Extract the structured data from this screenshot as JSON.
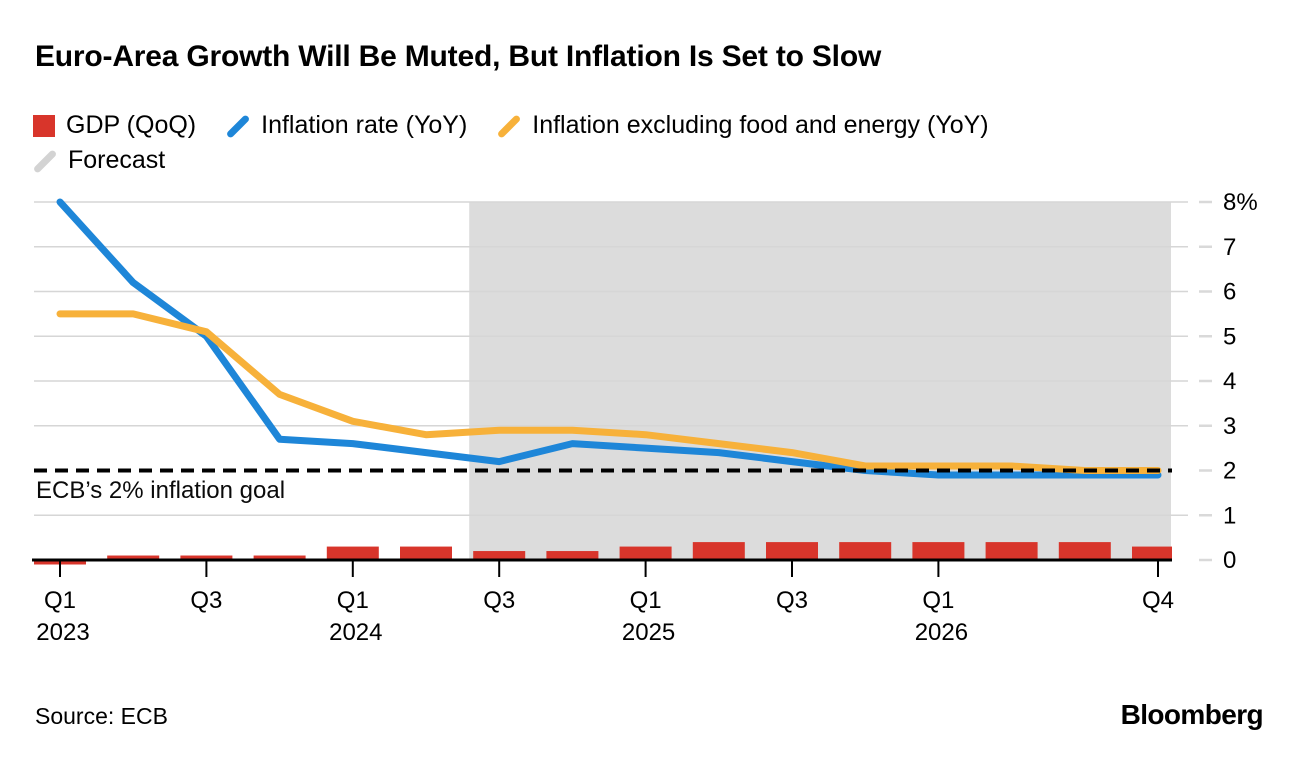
{
  "title": "Euro-Area Growth Will Be Muted, But Inflation Is Set to Slow",
  "legend": [
    {
      "label": "GDP (QoQ)",
      "swatch": "square",
      "color": "#d8352b"
    },
    {
      "label": "Inflation rate (YoY)",
      "swatch": "slash",
      "color": "#1e86d8"
    },
    {
      "label": "Inflation excluding food and energy (YoY)",
      "swatch": "slash",
      "color": "#f7b13a"
    },
    {
      "label": "Forecast",
      "swatch": "slash",
      "color": "#d3d3d3"
    }
  ],
  "annotation": "ECB’s 2% inflation goal",
  "source": "Source: ECB",
  "brand": "Bloomberg",
  "colors": {
    "gdp_bar": "#d8352b",
    "inflation_line": "#1e86d8",
    "core_inflation_line": "#f7b13a",
    "forecast_region": "#dcdcdc",
    "gridline": "#d6d6d6",
    "axis_tick_dash": "#d9d9d9",
    "reference_line": "#000000",
    "axis_line": "#000000",
    "text": "#000000"
  },
  "chart_data": {
    "type": "bar+line combo",
    "title": "Euro-Area Growth Will Be Muted, But Inflation Is Set to Slow",
    "categories": [
      "Q1 2023",
      "Q2 2023",
      "Q3 2023",
      "Q4 2023",
      "Q1 2024",
      "Q2 2024",
      "Q3 2024",
      "Q4 2024",
      "Q1 2025",
      "Q2 2025",
      "Q3 2025",
      "Q4 2025",
      "Q1 2026",
      "Q2 2026",
      "Q3 2026",
      "Q4 2026"
    ],
    "series": [
      {
        "name": "GDP (QoQ)",
        "type": "bar",
        "color": "#d8352b",
        "values": [
          0.0,
          0.1,
          0.1,
          0.1,
          0.3,
          0.3,
          0.2,
          0.2,
          0.3,
          0.4,
          0.4,
          0.4,
          0.4,
          0.4,
          0.4,
          0.3
        ]
      },
      {
        "name": "Inflation rate (YoY)",
        "type": "line",
        "color": "#1e86d8",
        "values": [
          8.0,
          6.2,
          5.0,
          2.7,
          2.6,
          2.4,
          2.2,
          2.6,
          2.5,
          2.4,
          2.2,
          2.0,
          1.9,
          1.9,
          1.9,
          1.9
        ]
      },
      {
        "name": "Inflation excluding food and energy (YoY)",
        "type": "line",
        "color": "#f7b13a",
        "values": [
          5.5,
          5.5,
          5.1,
          3.7,
          3.1,
          2.8,
          2.9,
          2.9,
          2.8,
          2.6,
          2.4,
          2.1,
          2.1,
          2.1,
          2.0,
          2.0
        ]
      }
    ],
    "forecast_start_category": "Q3 2024",
    "reference_line": {
      "value": 2,
      "label": "ECB’s 2% inflation goal",
      "style": "dashed"
    },
    "ylim": [
      0,
      8
    ],
    "y_ticks": [
      0,
      1,
      2,
      3,
      4,
      5,
      6,
      7,
      8
    ],
    "y_top_tick_label": "8%",
    "y_axis_side": "right",
    "grid": true,
    "legend_position": "top",
    "x_ticks": [
      {
        "index": 0,
        "label": "Q1",
        "year": "2023"
      },
      {
        "index": 2,
        "label": "Q3"
      },
      {
        "index": 4,
        "label": "Q1",
        "year": "2024"
      },
      {
        "index": 6,
        "label": "Q3"
      },
      {
        "index": 8,
        "label": "Q1",
        "year": "2025"
      },
      {
        "index": 10,
        "label": "Q3"
      },
      {
        "index": 12,
        "label": "Q1",
        "year": "2026"
      },
      {
        "index": 15,
        "label": "Q4"
      }
    ]
  }
}
